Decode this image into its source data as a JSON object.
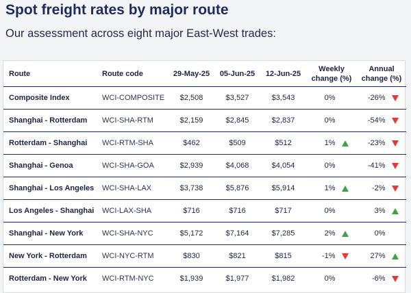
{
  "header": {
    "title": "Spot freight rates by major route",
    "subtitle": "Our assessment across eight major East-West trades:"
  },
  "colors": {
    "title": "#1e2a5c",
    "up_arrow": "#43a047",
    "down_arrow": "#e53935"
  },
  "table": {
    "columns": {
      "route": "Route",
      "code": "Route code",
      "d1": "29-May-25",
      "d2": "05-Jun-25",
      "d3": "12-Jun-25",
      "weekly_l1": "Weekly",
      "weekly_l2": "change (%)",
      "annual_l1": "Annual",
      "annual_l2": "change (%)"
    },
    "rows": [
      {
        "route": "Composite Index",
        "code": "WCI-COMPOSITE",
        "d1": "$2,508",
        "d2": "$3,527",
        "d3": "$3,543",
        "weekly": "0%",
        "weekly_dir": "none",
        "annual": "-26%",
        "annual_dir": "down"
      },
      {
        "route": "Shanghai - Rotterdam",
        "code": "WCI-SHA-RTM",
        "d1": "$2,159",
        "d2": "$2,845",
        "d3": "$2,837",
        "weekly": "0%",
        "weekly_dir": "none",
        "annual": "-54%",
        "annual_dir": "down"
      },
      {
        "route": "Rotterdam - Shanghai",
        "code": "WCI-RTM-SHA",
        "d1": "$462",
        "d2": "$509",
        "d3": "$512",
        "weekly": "1%",
        "weekly_dir": "up",
        "annual": "-23%",
        "annual_dir": "down"
      },
      {
        "route": "Shanghai - Genoa",
        "code": "WCI-SHA-GOA",
        "d1": "$2,939",
        "d2": "$4,068",
        "d3": "$4,054",
        "weekly": "0%",
        "weekly_dir": "none",
        "annual": "-41%",
        "annual_dir": "down"
      },
      {
        "route": "Shanghai - Los Angeles",
        "code": "WCI-SHA-LAX",
        "d1": "$3,738",
        "d2": "$5,876",
        "d3": "$5,914",
        "weekly": "1%",
        "weekly_dir": "up",
        "annual": "-2%",
        "annual_dir": "down"
      },
      {
        "route": "Los Angeles - Shanghai",
        "code": "WCI-LAX-SHA",
        "d1": "$716",
        "d2": "$716",
        "d3": "$717",
        "weekly": "0%",
        "weekly_dir": "none",
        "annual": "3%",
        "annual_dir": "up"
      },
      {
        "route": "Shanghai - New York",
        "code": "WCI-SHA-NYC",
        "d1": "$5,172",
        "d2": "$7,164",
        "d3": "$7,285",
        "weekly": "2%",
        "weekly_dir": "up",
        "annual": "0%",
        "annual_dir": "none"
      },
      {
        "route": "New York - Rotterdam",
        "code": "WCI-NYC-RTM",
        "d1": "$830",
        "d2": "$821",
        "d3": "$815",
        "weekly": "-1%",
        "weekly_dir": "down",
        "annual": "27%",
        "annual_dir": "up"
      },
      {
        "route": "Rotterdam - New York",
        "code": "WCI-RTM-NYC",
        "d1": "$1,939",
        "d2": "$1,977",
        "d3": "$1,982",
        "weekly": "0%",
        "weekly_dir": "none",
        "annual": "-6%",
        "annual_dir": "down"
      }
    ]
  }
}
